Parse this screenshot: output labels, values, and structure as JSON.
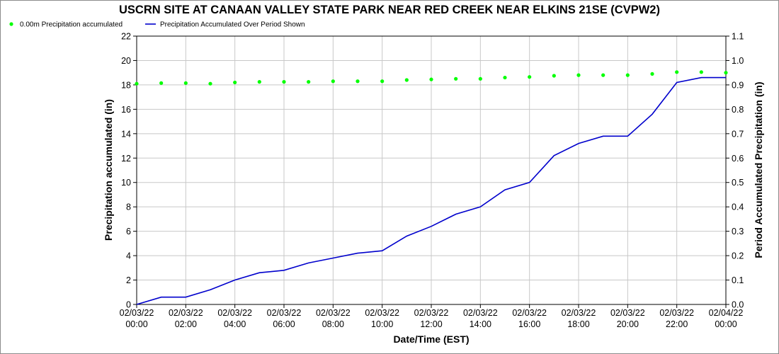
{
  "chart_data": {
    "type": "line",
    "title": "USCRN SITE AT CANAAN VALLEY STATE PARK NEAR RED CREEK NEAR ELKINS 21SE (CVPW2)",
    "xlabel": "Date/Time (EST)",
    "ylabel_left": "Precipitation accumulated (in)",
    "ylabel_right": "Period Accumulated Precipitation (in)",
    "ylim_left": [
      0,
      22
    ],
    "ylim_right": [
      0,
      1.1
    ],
    "yticks_left": [
      "0",
      "2",
      "4",
      "6",
      "8",
      "10",
      "12",
      "14",
      "16",
      "18",
      "20",
      "22"
    ],
    "yticks_right": [
      "0.0",
      "0.1",
      "0.2",
      "0.3",
      "0.4",
      "0.5",
      "0.6",
      "0.7",
      "0.8",
      "0.9",
      "1.0",
      "1.1"
    ],
    "xticks": [
      {
        "date": "02/03/22",
        "time": "00:00"
      },
      {
        "date": "02/03/22",
        "time": "02:00"
      },
      {
        "date": "02/03/22",
        "time": "04:00"
      },
      {
        "date": "02/03/22",
        "time": "06:00"
      },
      {
        "date": "02/03/22",
        "time": "08:00"
      },
      {
        "date": "02/03/22",
        "time": "10:00"
      },
      {
        "date": "02/03/22",
        "time": "12:00"
      },
      {
        "date": "02/03/22",
        "time": "14:00"
      },
      {
        "date": "02/03/22",
        "time": "16:00"
      },
      {
        "date": "02/03/22",
        "time": "18:00"
      },
      {
        "date": "02/03/22",
        "time": "20:00"
      },
      {
        "date": "02/03/22",
        "time": "22:00"
      },
      {
        "date": "02/04/22",
        "time": "00:00"
      }
    ],
    "x_hours": [
      0,
      1,
      2,
      3,
      4,
      5,
      6,
      7,
      8,
      9,
      10,
      11,
      12,
      13,
      14,
      15,
      16,
      17,
      18,
      19,
      20,
      21,
      22,
      23,
      24
    ],
    "legend_placement": "top-left",
    "grid": true,
    "series": [
      {
        "name": "0.00m Precipitation accumulated",
        "axis": "left",
        "style": "points",
        "color": "#00ff00",
        "values": [
          18.1,
          18.15,
          18.15,
          18.1,
          18.2,
          18.25,
          18.25,
          18.25,
          18.3,
          18.3,
          18.3,
          18.4,
          18.45,
          18.5,
          18.5,
          18.6,
          18.65,
          18.75,
          18.8,
          18.8,
          18.8,
          18.9,
          19.05,
          19.05,
          19.0
        ]
      },
      {
        "name": "Precipitation Accumulated Over Period Shown",
        "axis": "right",
        "style": "line",
        "color": "#0000cc",
        "values": [
          0.0,
          0.03,
          0.03,
          0.06,
          0.1,
          0.13,
          0.14,
          0.17,
          0.19,
          0.21,
          0.22,
          0.28,
          0.32,
          0.37,
          0.4,
          0.47,
          0.5,
          0.61,
          0.66,
          0.69,
          0.69,
          0.78,
          0.91,
          0.93,
          0.93
        ]
      }
    ]
  }
}
